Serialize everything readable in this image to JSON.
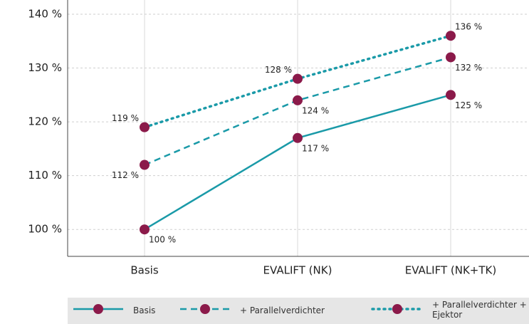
{
  "chart_data": {
    "type": "line",
    "categories": [
      "Basis",
      "EVALIFT (NK)",
      "EVALIFT (NK+TK)"
    ],
    "series": [
      {
        "name": "Basis",
        "color": "#1a9aa8",
        "marker_color": "#8b1a4a",
        "style": "solid",
        "values": [
          100,
          117,
          125
        ],
        "value_labels": [
          "100 %",
          "117 %",
          "125 %"
        ]
      },
      {
        "name": "+ Parallelverdichter",
        "color": "#1a9aa8",
        "marker_color": "#8b1a4a",
        "style": "dashed",
        "values": [
          112,
          124,
          132
        ],
        "value_labels": [
          "112 %",
          "124 %",
          "132 %"
        ]
      },
      {
        "name": "+ Parallelverdichter + Ejektor",
        "color": "#1a9aa8",
        "marker_color": "#8b1a4a",
        "style": "dotted",
        "values": [
          119,
          128,
          136
        ],
        "value_labels": [
          "119 %",
          "128 %",
          "136 %"
        ]
      }
    ],
    "ylim": [
      95,
      140
    ],
    "yticks": [
      {
        "value": 100,
        "label": "100 %"
      },
      {
        "value": 110,
        "label": "110 %"
      },
      {
        "value": 120,
        "label": "120 %"
      },
      {
        "value": 130,
        "label": "130 %"
      },
      {
        "value": 140,
        "label": "140 %"
      }
    ],
    "grid": true,
    "legend": "bottom"
  }
}
